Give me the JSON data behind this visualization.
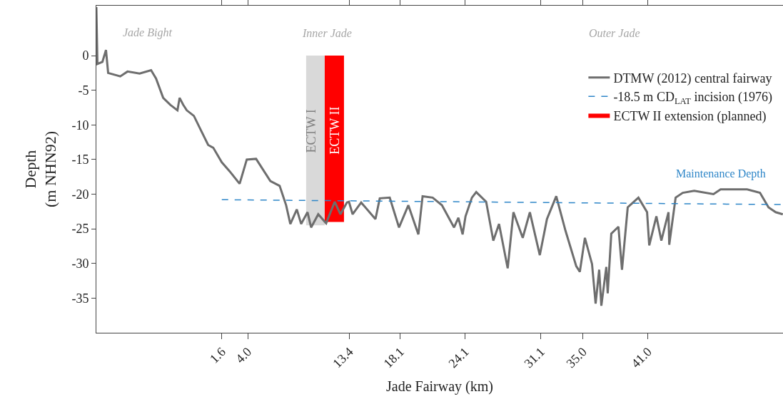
{
  "chart_data": {
    "type": "line",
    "xlabel": "Jade Fairway (km)",
    "ylabel": "Depth\n(m NHN92)",
    "xlim": [
      -10,
      53.5
    ],
    "ylim": [
      -40,
      7.2
    ],
    "xticks": [
      1.6,
      {
        "value": 4.0,
        "label": "4.0"
      },
      13.4,
      18.1,
      24.1,
      31.1,
      {
        "value": 35.0,
        "label": "35.0"
      },
      {
        "value": 41.0,
        "label": "41.0"
      }
    ],
    "yticks": [
      0,
      -5,
      -10,
      -15,
      -20,
      -25,
      -30,
      -35
    ],
    "legend": "top right",
    "marker": "none",
    "series": [
      {
        "type": "area",
        "color": "#d9d9d9",
        "x": [
          9.4,
          11.12
        ],
        "values": [
          -24.5,
          -24.5
        ]
      },
      {
        "type": "area",
        "name": "ECTW II extension (planned)",
        "color": "#ff0000",
        "x": [
          11.12,
          12.9
        ],
        "values": [
          -24.0,
          -24.0
        ]
      },
      {
        "name": "DTMW (2012) central fairway",
        "color": "#6e6e6e",
        "line_style": "solid",
        "x": [
          -10.0,
          -9.9,
          -9.44,
          -9.11,
          -8.91,
          -7.79,
          -7.12,
          -6.0,
          -4.94,
          -4.48,
          -3.82,
          -3.16,
          -2.5,
          -2.3,
          -1.97,
          -1.64,
          -0.98,
          -0.32,
          0.34,
          0.81,
          1.6,
          2.33,
          3.25,
          3.91,
          4.77,
          6.09,
          6.95,
          7.55,
          7.94,
          8.54,
          8.94,
          9.53,
          9.86,
          10.52,
          11.25,
          12.04,
          12.57,
          13.17,
          13.36,
          13.7,
          14.49,
          15.81,
          16.21,
          17.13,
          17.99,
          18.85,
          19.78,
          20.17,
          21.1,
          21.96,
          23.08,
          23.48,
          23.87,
          24.14,
          24.73,
          25.13,
          26.05,
          26.71,
          27.24,
          28.04,
          28.57,
          29.43,
          30.09,
          31.01,
          31.67,
          32.53,
          33.39,
          34.38,
          34.71,
          35.18,
          35.84,
          36.17,
          36.5,
          36.7,
          37.16,
          37.29,
          37.62,
          38.28,
          38.61,
          39.14,
          40.13,
          40.93,
          41.13,
          41.79,
          42.25,
          42.91,
          42.98,
          43.57,
          44.23,
          45.29,
          47.07,
          47.73,
          50.18,
          51.37,
          52.16,
          52.82,
          53.48
        ],
        "values": [
          7.0,
          -1.2,
          -0.9,
          0.8,
          -2.5,
          -3.0,
          -2.3,
          -2.6,
          -2.1,
          -3.3,
          -6.1,
          -7.1,
          -7.9,
          -6.1,
          -7.1,
          -7.9,
          -8.7,
          -10.8,
          -12.9,
          -13.3,
          -15.4,
          -16.7,
          -18.5,
          -15.0,
          -14.9,
          -18.1,
          -18.8,
          -21.6,
          -24.3,
          -22.2,
          -24.3,
          -22.6,
          -24.8,
          -22.9,
          -24.2,
          -21.1,
          -22.9,
          -21.2,
          -21.1,
          -22.9,
          -21.2,
          -23.6,
          -20.6,
          -20.5,
          -24.8,
          -21.6,
          -25.8,
          -20.3,
          -20.5,
          -21.6,
          -24.8,
          -23.4,
          -25.8,
          -23.2,
          -20.5,
          -19.7,
          -21.1,
          -26.7,
          -24.3,
          -30.7,
          -22.6,
          -26.3,
          -22.6,
          -28.8,
          -23.6,
          -20.3,
          -25.3,
          -30.4,
          -31.2,
          -26.3,
          -30.1,
          -35.8,
          -30.9,
          -36.1,
          -30.5,
          -34.3,
          -25.7,
          -24.7,
          -30.9,
          -21.9,
          -20.5,
          -22.6,
          -27.4,
          -23.2,
          -26.7,
          -22.6,
          -27.3,
          -20.5,
          -19.8,
          -19.5,
          -20.0,
          -19.3,
          -19.3,
          -19.8,
          -21.9,
          -22.6,
          -22.9
        ]
      },
      {
        "type": "line",
        "name": "-18.5 m CD$_{LAT}$ incision (1976)",
        "color": "#2e86c8",
        "line_style": "dashed",
        "x": [
          1.6,
          53.5
        ],
        "values": [
          -20.8,
          -21.5
        ]
      }
    ],
    "annotations": [
      "Jade Bight",
      "Inner Jade",
      "Outer Jade",
      "ECTW I",
      "ECTW II",
      "Maintenance Depth"
    ]
  }
}
